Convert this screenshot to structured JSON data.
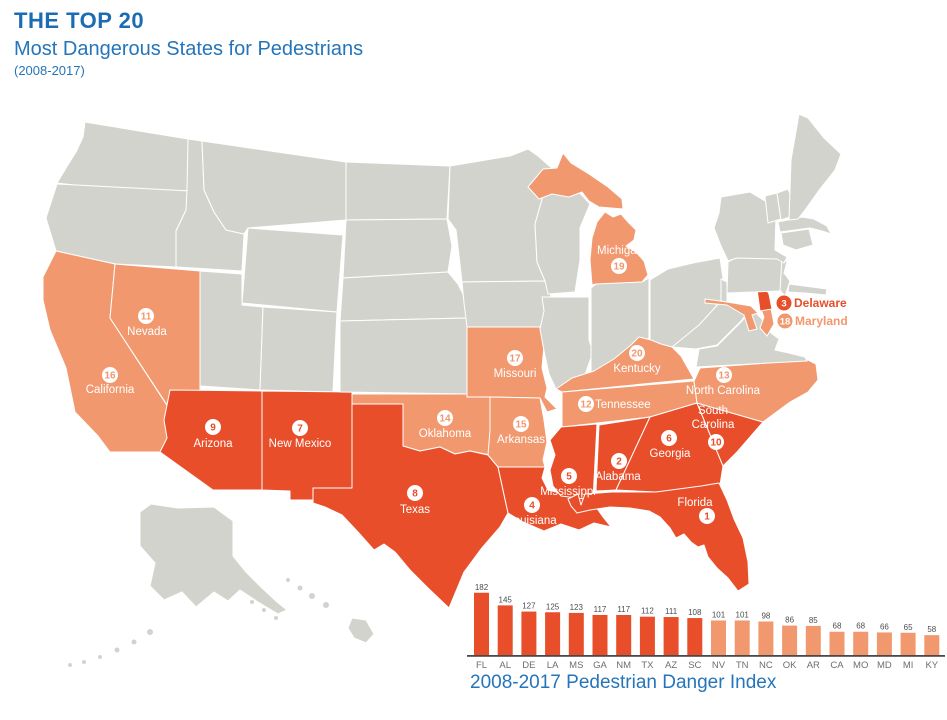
{
  "header": {
    "title": "THE TOP 20",
    "subtitle": "Most Dangerous States for Pedestrians",
    "years": "(2008-2017)"
  },
  "colors": {
    "tier1": "#E84E2A",
    "tier2": "#F2986E",
    "gray": "#D3D3CE",
    "blue": "#2575BA",
    "bar_value_label": "#4D4D4D",
    "bar_axis_label": "#6E6E6E"
  },
  "map": {
    "states": [
      {
        "code": "FL",
        "name": "Florida",
        "rank": 1,
        "tier": 1
      },
      {
        "code": "AL",
        "name": "Alabama",
        "rank": 2,
        "tier": 1
      },
      {
        "code": "DE",
        "name": "Delaware",
        "rank": 3,
        "tier": 1
      },
      {
        "code": "LA",
        "name": "Louisiana",
        "rank": 4,
        "tier": 1
      },
      {
        "code": "MS",
        "name": "Mississippi",
        "rank": 5,
        "tier": 1
      },
      {
        "code": "GA",
        "name": "Georgia",
        "rank": 6,
        "tier": 1
      },
      {
        "code": "NM",
        "name": "New Mexico",
        "rank": 7,
        "tier": 1
      },
      {
        "code": "TX",
        "name": "Texas",
        "rank": 8,
        "tier": 1
      },
      {
        "code": "AZ",
        "name": "Arizona",
        "rank": 9,
        "tier": 1
      },
      {
        "code": "SC",
        "name": "South Carolina",
        "rank": 10,
        "tier": 1
      },
      {
        "code": "NV",
        "name": "Nevada",
        "rank": 11,
        "tier": 2
      },
      {
        "code": "TN",
        "name": "Tennessee",
        "rank": 12,
        "tier": 2
      },
      {
        "code": "NC",
        "name": "North Carolina",
        "rank": 13,
        "tier": 2
      },
      {
        "code": "OK",
        "name": "Oklahoma",
        "rank": 14,
        "tier": 2
      },
      {
        "code": "AR",
        "name": "Arkansas",
        "rank": 15,
        "tier": 2
      },
      {
        "code": "CA",
        "name": "California",
        "rank": 16,
        "tier": 2
      },
      {
        "code": "MO",
        "name": "Missouri",
        "rank": 17,
        "tier": 2
      },
      {
        "code": "MD",
        "name": "Maryland",
        "rank": 18,
        "tier": 2
      },
      {
        "code": "MI",
        "name": "Michigan",
        "rank": 19,
        "tier": 2
      },
      {
        "code": "KY",
        "name": "Kentucky",
        "rank": 20,
        "tier": 2
      }
    ]
  },
  "chart_data": {
    "type": "bar",
    "title": "2008-2017 Pedestrian Danger Index",
    "categories": [
      "FL",
      "AL",
      "DE",
      "LA",
      "MS",
      "GA",
      "NM",
      "TX",
      "AZ",
      "SC",
      "NV",
      "TN",
      "NC",
      "OK",
      "AR",
      "CA",
      "MO",
      "MD",
      "MI",
      "KY"
    ],
    "values": [
      182,
      145,
      127,
      125,
      123,
      117,
      117,
      112,
      111,
      108,
      101,
      101,
      98,
      86,
      85,
      68,
      68,
      66,
      65,
      58
    ],
    "series_colors_by_rank": {
      "ranks_1_10": "#E84E2A",
      "ranks_11_20": "#F2986E"
    },
    "xlabel": "",
    "ylabel": "Pedestrian Danger Index",
    "ylim": [
      0,
      190
    ],
    "grid": false,
    "legend": false
  }
}
